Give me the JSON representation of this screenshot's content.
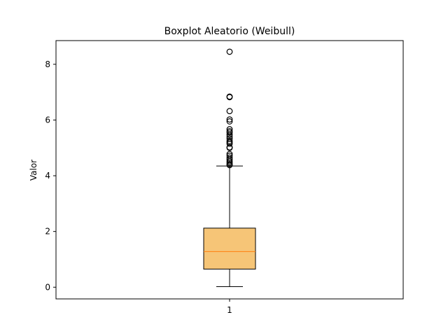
{
  "chart_data": {
    "type": "box",
    "title": "Boxplot Aleatorio (Weibull)",
    "xlabel": "",
    "ylabel": "Valor",
    "categories": [
      "1"
    ],
    "ylim": [
      -0.42,
      8.85
    ],
    "yticks": [
      0,
      2,
      4,
      6,
      8
    ],
    "grid": false,
    "box": {
      "whisker_low": 0.02,
      "q1": 0.65,
      "median": 1.28,
      "q3": 2.12,
      "whisker_high": 4.35,
      "fill_color": "#f6c577",
      "median_color": "#ff7f0e"
    },
    "outliers": [
      4.38,
      4.42,
      4.47,
      4.52,
      4.58,
      4.65,
      4.72,
      4.78,
      5.0,
      5.02,
      5.15,
      5.2,
      5.25,
      5.33,
      5.4,
      5.47,
      5.55,
      5.6,
      5.67,
      5.95,
      6.02,
      6.32,
      6.82,
      6.84,
      8.45
    ]
  }
}
